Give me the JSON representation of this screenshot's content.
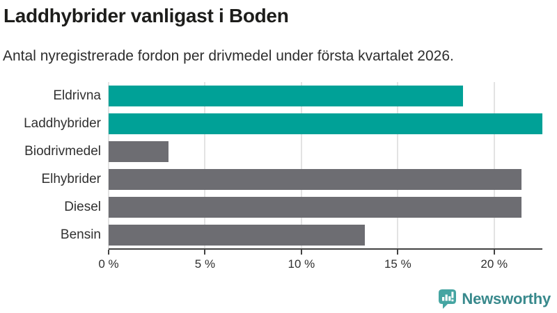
{
  "header": {
    "title": "Laddhybrider vanligast i Boden",
    "subtitle": "Antal nyregistrerade fordon per drivmedel under första kvartalet 2026."
  },
  "chart_data": {
    "type": "bar",
    "orientation": "horizontal",
    "title": "Laddhybrider vanligast i Boden",
    "subtitle": "Antal nyregistrerade fordon per drivmedel under första kvartalet 2026.",
    "categories": [
      "Eldrivna",
      "Laddhybrider",
      "Biodrivmedel",
      "Elhybrider",
      "Diesel",
      "Bensin"
    ],
    "values": [
      18.4,
      22.5,
      3.1,
      21.4,
      21.4,
      13.3
    ],
    "unit": "%",
    "xlabel": "",
    "ylabel": "",
    "xlim": [
      0,
      22.5
    ],
    "x_ticks": [
      0,
      5,
      10,
      15,
      20
    ],
    "x_tick_labels": [
      "0 %",
      "5 %",
      "10 %",
      "15 %",
      "20 %"
    ],
    "grid": true,
    "legend": false,
    "bar_colors": [
      "#00a197",
      "#00a197",
      "#6d6d72",
      "#6d6d72",
      "#6d6d72",
      "#6d6d72"
    ],
    "highlight_color": "#00a197",
    "base_color": "#6d6d72",
    "gridline_color": "#e3e3e3",
    "axis_color": "#424242"
  },
  "footer": {
    "brand": "Newsworthy",
    "brand_text_color": "#38898c",
    "brand_icon_color": "#45a5a2",
    "brand_icon": "bar-chart-speech-bubble-icon"
  }
}
